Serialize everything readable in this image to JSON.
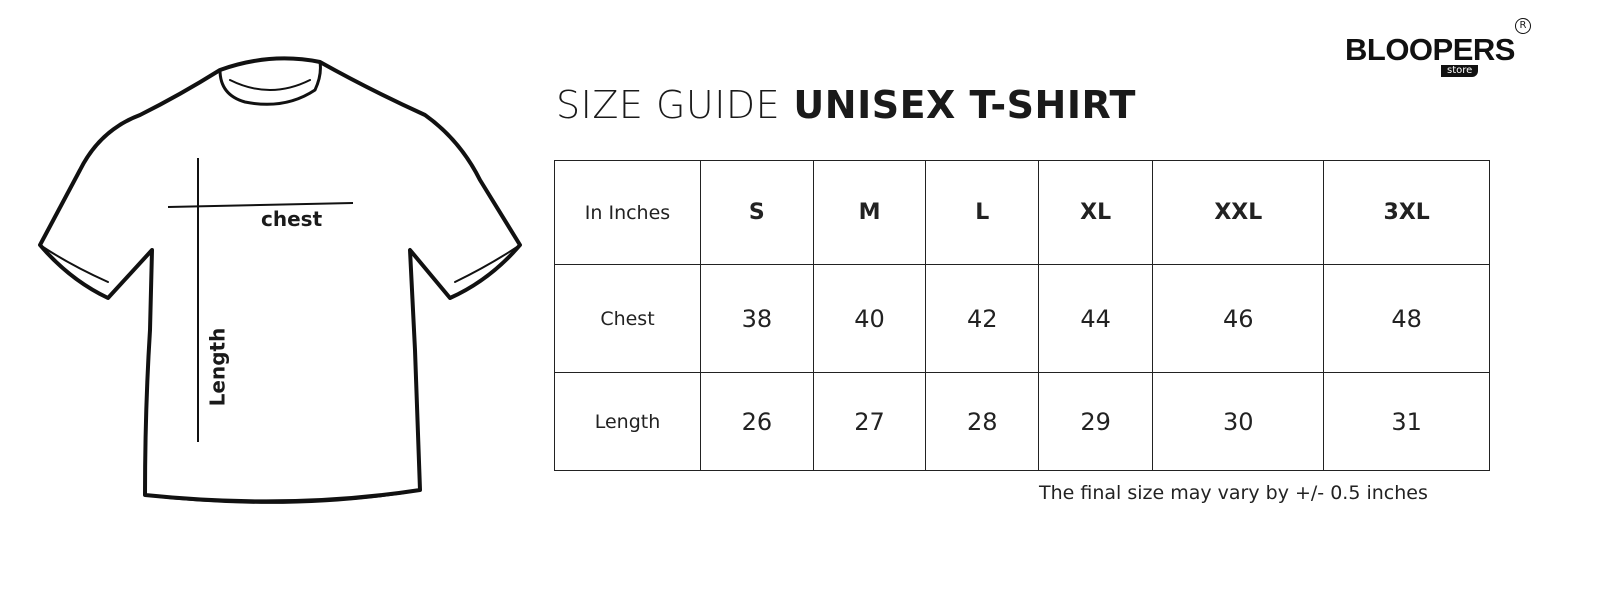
{
  "brand": {
    "name": "BLOOPERS",
    "sub": "store",
    "mark": "R"
  },
  "title": {
    "light": "SIZE GUIDE",
    "bold": "UNISEX T-SHIRT"
  },
  "diagram": {
    "chest_label": "chest",
    "length_label": "Length"
  },
  "table": {
    "header": [
      "In Inches",
      "S",
      "M",
      "L",
      "XL",
      "XXL",
      "3XL"
    ],
    "rows": [
      [
        "Chest",
        "38",
        "40",
        "42",
        "44",
        "46",
        "48"
      ],
      [
        "Length",
        "26",
        "27",
        "28",
        "29",
        "30",
        "31"
      ]
    ]
  },
  "note": "The final size may vary by +/- 0.5 inches"
}
